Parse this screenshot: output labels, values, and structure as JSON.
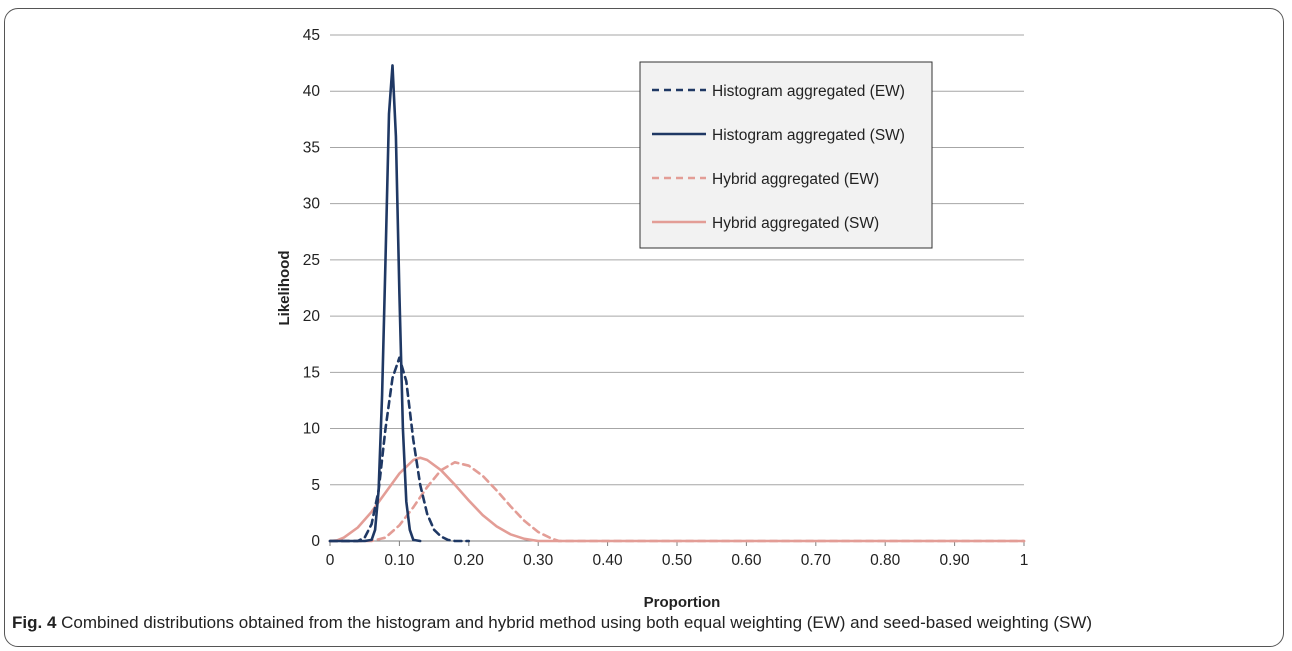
{
  "caption": {
    "label": "Fig. 4",
    "text": " Combined distributions obtained from the histogram and hybrid method using both equal weighting (EW) and seed-based weighting (SW)"
  },
  "chart_data": {
    "type": "line",
    "title": "",
    "xlabel": "Proportion",
    "ylabel": "Likelihood",
    "xlim": [
      0,
      1
    ],
    "ylim": [
      0,
      45
    ],
    "x_ticks": [
      0,
      0.1,
      0.2,
      0.3,
      0.4,
      0.5,
      0.6,
      0.7,
      0.8,
      0.9,
      1
    ],
    "x_tick_labels": [
      "0",
      "0.10",
      "0.20",
      "0.30",
      "0.40",
      "0.50",
      "0.60",
      "0.70",
      "0.80",
      "0.90",
      "1"
    ],
    "y_ticks": [
      0,
      5,
      10,
      15,
      20,
      25,
      30,
      35,
      40,
      45
    ],
    "y_tick_labels": [
      "0",
      "5",
      "10",
      "15",
      "20",
      "25",
      "30",
      "35",
      "40",
      "45"
    ],
    "grid": "horizontal",
    "legend_position": "top-right",
    "series": [
      {
        "name": "Histogram aggregated (EW)",
        "color": "#1f3864",
        "dash": "dashed",
        "x": [
          0.0,
          0.04,
          0.05,
          0.06,
          0.07,
          0.08,
          0.09,
          0.1,
          0.11,
          0.12,
          0.13,
          0.14,
          0.15,
          0.16,
          0.17,
          0.18,
          0.2
        ],
        "y": [
          0,
          0,
          0.3,
          1.5,
          4.5,
          10.0,
          14.5,
          16.3,
          14.2,
          9.0,
          5.0,
          2.4,
          1.0,
          0.4,
          0.1,
          0,
          0
        ]
      },
      {
        "name": "Histogram aggregated (SW)",
        "color": "#1f3864",
        "dash": "solid",
        "x": [
          0.0,
          0.05,
          0.06,
          0.065,
          0.07,
          0.075,
          0.08,
          0.085,
          0.09,
          0.095,
          0.1,
          0.105,
          0.11,
          0.115,
          0.12,
          0.13
        ],
        "y": [
          0,
          0,
          0.1,
          1.0,
          4.5,
          13.0,
          25.0,
          38.0,
          42.3,
          36.0,
          22.0,
          10.0,
          3.5,
          1.0,
          0.1,
          0
        ]
      },
      {
        "name": "Hybrid aggregated (EW)",
        "color": "#e39d96",
        "dash": "dashed",
        "x": [
          0.0,
          0.06,
          0.08,
          0.1,
          0.12,
          0.14,
          0.16,
          0.18,
          0.2,
          0.22,
          0.24,
          0.26,
          0.28,
          0.3,
          0.32,
          0.33,
          0.35,
          1.0
        ],
        "y": [
          0,
          0,
          0.3,
          1.4,
          3.0,
          4.8,
          6.3,
          7.0,
          6.7,
          5.8,
          4.5,
          3.1,
          1.8,
          0.8,
          0.2,
          0,
          0,
          0
        ]
      },
      {
        "name": "Hybrid aggregated (SW)",
        "color": "#e39d96",
        "dash": "solid",
        "x": [
          0.0,
          0.01,
          0.02,
          0.04,
          0.06,
          0.08,
          0.1,
          0.12,
          0.13,
          0.14,
          0.16,
          0.18,
          0.2,
          0.22,
          0.24,
          0.26,
          0.28,
          0.3,
          1.0
        ],
        "y": [
          0,
          0.05,
          0.3,
          1.2,
          2.6,
          4.3,
          6.0,
          7.2,
          7.4,
          7.2,
          6.3,
          5.0,
          3.6,
          2.3,
          1.3,
          0.6,
          0.2,
          0,
          0
        ]
      }
    ]
  }
}
